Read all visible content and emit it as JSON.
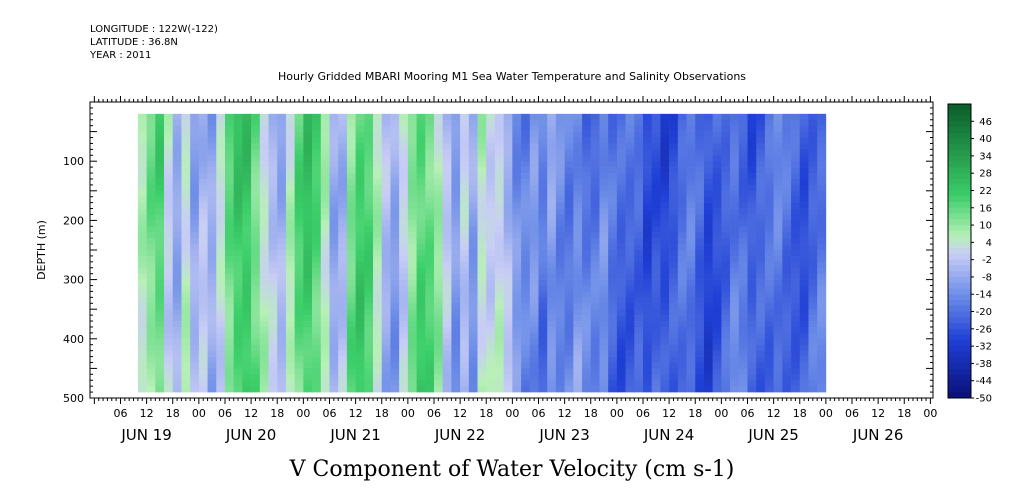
{
  "header": {
    "meta_lines": [
      "LONGITUDE : 122W(-122)",
      "LATITUDE : 36.8N",
      "YEAR : 2011"
    ]
  },
  "chart_data": {
    "type": "heatmap",
    "title": "Hourly Gridded MBARI Mooring M1 Sea Water Temperature and Salinity Observations",
    "variable_title": "V Component of Water Velocity (cm s-1)",
    "ylabel": "DEPTH (m)",
    "ylim": [
      500,
      0
    ],
    "y_ticks": [
      100,
      200,
      300,
      400,
      500
    ],
    "x_hour_labels": [
      "06",
      "12",
      "18",
      "00",
      "06",
      "12",
      "18",
      "00",
      "06",
      "12",
      "18",
      "00",
      "06",
      "12",
      "18",
      "00",
      "06",
      "12",
      "18",
      "00",
      "06",
      "12",
      "18",
      "00",
      "06",
      "12",
      "18",
      "00",
      "06",
      "12",
      "18",
      "00"
    ],
    "x_day_labels": [
      "JUN 19",
      "JUN 20",
      "JUN 21",
      "JUN 22",
      "JUN 23",
      "JUN 24",
      "JUN 25",
      "JUN 26"
    ],
    "colorbar_labels": [
      "46",
      "40",
      "34",
      "28",
      "22",
      "16",
      "10",
      "4",
      "-2",
      "-8",
      "-14",
      "-20",
      "-26",
      "-32",
      "-38",
      "-44",
      "-50"
    ],
    "colorbar_range": [
      -50,
      52
    ],
    "colors": {
      "strong_positive": "#0a5c2a",
      "positive": "#3ccf6a",
      "weak_positive": "#b8f0b8",
      "zero": "#c8cdf5",
      "negative": "#6f8fe8",
      "strong_negative": "#1f3fd6",
      "extreme_negative": "#0a1078",
      "missing": "#ffffff"
    },
    "field_depth_range": [
      20,
      490
    ],
    "field_time_range_hours_from_jun19_00": [
      11,
      167
    ],
    "column_profile_hours": [
      11,
      13,
      15,
      17,
      19,
      21,
      23,
      25,
      27,
      29,
      31,
      33,
      35,
      37,
      39,
      41,
      43,
      45,
      47,
      49,
      51,
      53,
      55,
      57,
      59,
      61,
      63,
      65,
      67,
      69,
      71,
      73,
      75,
      77,
      79,
      81,
      83,
      85,
      87,
      89,
      91,
      93,
      95,
      97,
      99,
      101,
      103,
      105,
      107,
      109,
      111,
      113,
      115,
      117,
      119,
      121,
      123,
      125,
      127,
      129,
      131,
      133,
      135,
      137,
      139,
      141,
      143,
      145,
      147,
      149,
      151,
      153,
      155,
      157,
      159,
      161,
      163,
      165,
      167
    ],
    "column_profile_values": [
      4,
      12,
      18,
      2,
      -6,
      6,
      -8,
      -4,
      -10,
      0,
      14,
      22,
      24,
      16,
      6,
      -2,
      -8,
      4,
      16,
      22,
      18,
      8,
      -6,
      -4,
      14,
      20,
      16,
      4,
      -6,
      -10,
      2,
      14,
      20,
      16,
      8,
      -4,
      -14,
      -2,
      -10,
      6,
      2,
      4,
      -4,
      -14,
      -18,
      -14,
      -20,
      -10,
      -14,
      -16,
      -12,
      -18,
      -20,
      -16,
      -22,
      -24,
      -22,
      -20,
      -26,
      -24,
      -28,
      -26,
      -22,
      -20,
      -24,
      -28,
      -24,
      -20,
      -16,
      -20,
      -26,
      -24,
      -22,
      -18,
      -20,
      -22,
      -24,
      -20,
      -18
    ]
  }
}
